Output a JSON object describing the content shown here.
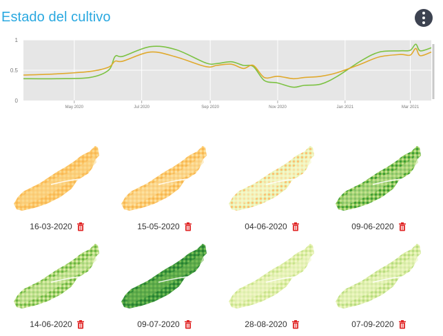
{
  "header": {
    "title": "Estado del cultivo",
    "menu_icon": "more-vertical-icon"
  },
  "chart_data": {
    "type": "line",
    "ylim": [
      0,
      1
    ],
    "y_ticks": [
      "0",
      "0.5",
      "1"
    ],
    "x_ticks": [
      "May 2020",
      "Jul 2020",
      "Sep 2020",
      "Nov 2020",
      "Jan 2021",
      "Mar 2021"
    ],
    "x_range": [
      "2020-03-16",
      "2021-03-20"
    ],
    "grid": true,
    "series": [
      {
        "color": "#7cc242",
        "points": [
          [
            "2020-03-16",
            0.36
          ],
          [
            "2020-04-15",
            0.36
          ],
          [
            "2020-05-15",
            0.38
          ],
          [
            "2020-06-01",
            0.5
          ],
          [
            "2020-06-07",
            0.73
          ],
          [
            "2020-06-14",
            0.73
          ],
          [
            "2020-07-09",
            0.89
          ],
          [
            "2020-08-01",
            0.84
          ],
          [
            "2020-08-28",
            0.62
          ],
          [
            "2020-09-07",
            0.61
          ],
          [
            "2020-09-20",
            0.64
          ],
          [
            "2020-10-01",
            0.58
          ],
          [
            "2020-10-10",
            0.56
          ],
          [
            "2020-10-20",
            0.33
          ],
          [
            "2020-11-01",
            0.29
          ],
          [
            "2020-11-15",
            0.22
          ],
          [
            "2020-11-25",
            0.25
          ],
          [
            "2020-12-10",
            0.27
          ],
          [
            "2020-12-25",
            0.4
          ],
          [
            "2021-01-15",
            0.65
          ],
          [
            "2021-02-01",
            0.8
          ],
          [
            "2021-02-20",
            0.82
          ],
          [
            "2021-03-01",
            0.83
          ],
          [
            "2021-03-06",
            0.93
          ],
          [
            "2021-03-10",
            0.82
          ],
          [
            "2021-03-20",
            0.87
          ]
        ]
      },
      {
        "color": "#e0a92c",
        "points": [
          [
            "2020-03-16",
            0.42
          ],
          [
            "2020-04-15",
            0.44
          ],
          [
            "2020-05-15",
            0.48
          ],
          [
            "2020-06-01",
            0.55
          ],
          [
            "2020-06-07",
            0.65
          ],
          [
            "2020-06-14",
            0.65
          ],
          [
            "2020-07-09",
            0.8
          ],
          [
            "2020-08-01",
            0.72
          ],
          [
            "2020-08-28",
            0.56
          ],
          [
            "2020-09-07",
            0.58
          ],
          [
            "2020-09-20",
            0.6
          ],
          [
            "2020-10-01",
            0.53
          ],
          [
            "2020-10-10",
            0.58
          ],
          [
            "2020-10-20",
            0.38
          ],
          [
            "2020-11-01",
            0.4
          ],
          [
            "2020-11-15",
            0.36
          ],
          [
            "2020-11-25",
            0.38
          ],
          [
            "2020-12-10",
            0.4
          ],
          [
            "2020-12-25",
            0.46
          ],
          [
            "2021-01-15",
            0.6
          ],
          [
            "2021-02-01",
            0.72
          ],
          [
            "2021-02-20",
            0.76
          ],
          [
            "2021-03-01",
            0.75
          ],
          [
            "2021-03-06",
            0.86
          ],
          [
            "2021-03-10",
            0.74
          ],
          [
            "2021-03-20",
            0.8
          ]
        ]
      }
    ]
  },
  "images": [
    {
      "date": "16-03-2020",
      "fill": "#fdc565",
      "fill2": "#fbd98e",
      "accent": "#f7b955"
    },
    {
      "date": "15-05-2020",
      "fill": "#fdca6e",
      "fill2": "#fce0a0",
      "accent": "#f6b753"
    },
    {
      "date": "04-06-2020",
      "fill": "#e8f2b4",
      "fill2": "#f5f7c9",
      "accent": "#fbc374"
    },
    {
      "date": "09-06-2020",
      "fill": "#86c453",
      "fill2": "#c2e191",
      "accent": "#3f9c37"
    },
    {
      "date": "14-06-2020",
      "fill": "#a5d36c",
      "fill2": "#d9ecaa",
      "accent": "#6bb544"
    },
    {
      "date": "09-07-2020",
      "fill": "#3e9a3e",
      "fill2": "#76bb55",
      "accent": "#2a7f31"
    },
    {
      "date": "28-08-2020",
      "fill": "#dfeea6",
      "fill2": "#eff6c6",
      "accent": "#c8e48e"
    },
    {
      "date": "07-09-2020",
      "fill": "#d6eb9d",
      "fill2": "#ecf5c2",
      "accent": "#b8dc82"
    }
  ],
  "delete_icon": "trash-icon"
}
